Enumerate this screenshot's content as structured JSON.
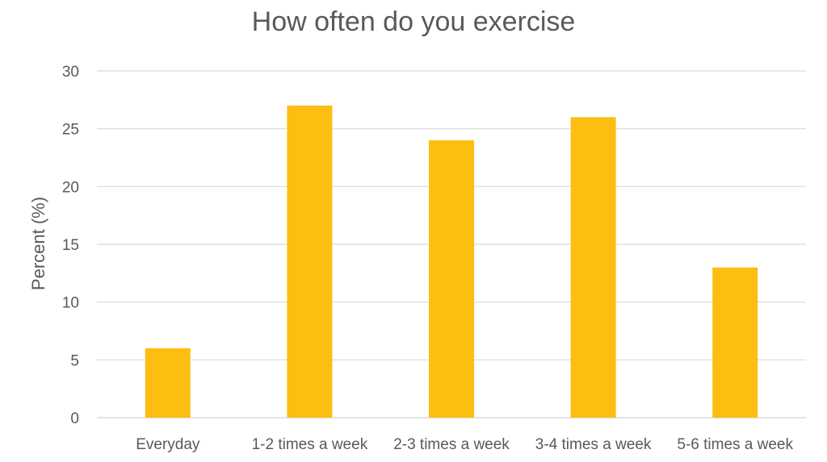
{
  "chart_data": {
    "type": "bar",
    "title": "How often do you exercise",
    "ylabel": "Percent (%)",
    "xlabel": "",
    "categories": [
      "Everyday",
      "1-2 times a week",
      "2-3 times a week",
      "3-4 times a week",
      "5-6 times a week"
    ],
    "values": [
      6,
      27,
      24,
      26,
      13
    ],
    "ylim": [
      0,
      30
    ],
    "yticks": [
      0,
      5,
      10,
      15,
      20,
      25,
      30
    ],
    "grid": true,
    "bar_color": "#FDBE12",
    "grid_color": "#D9D9D9"
  }
}
